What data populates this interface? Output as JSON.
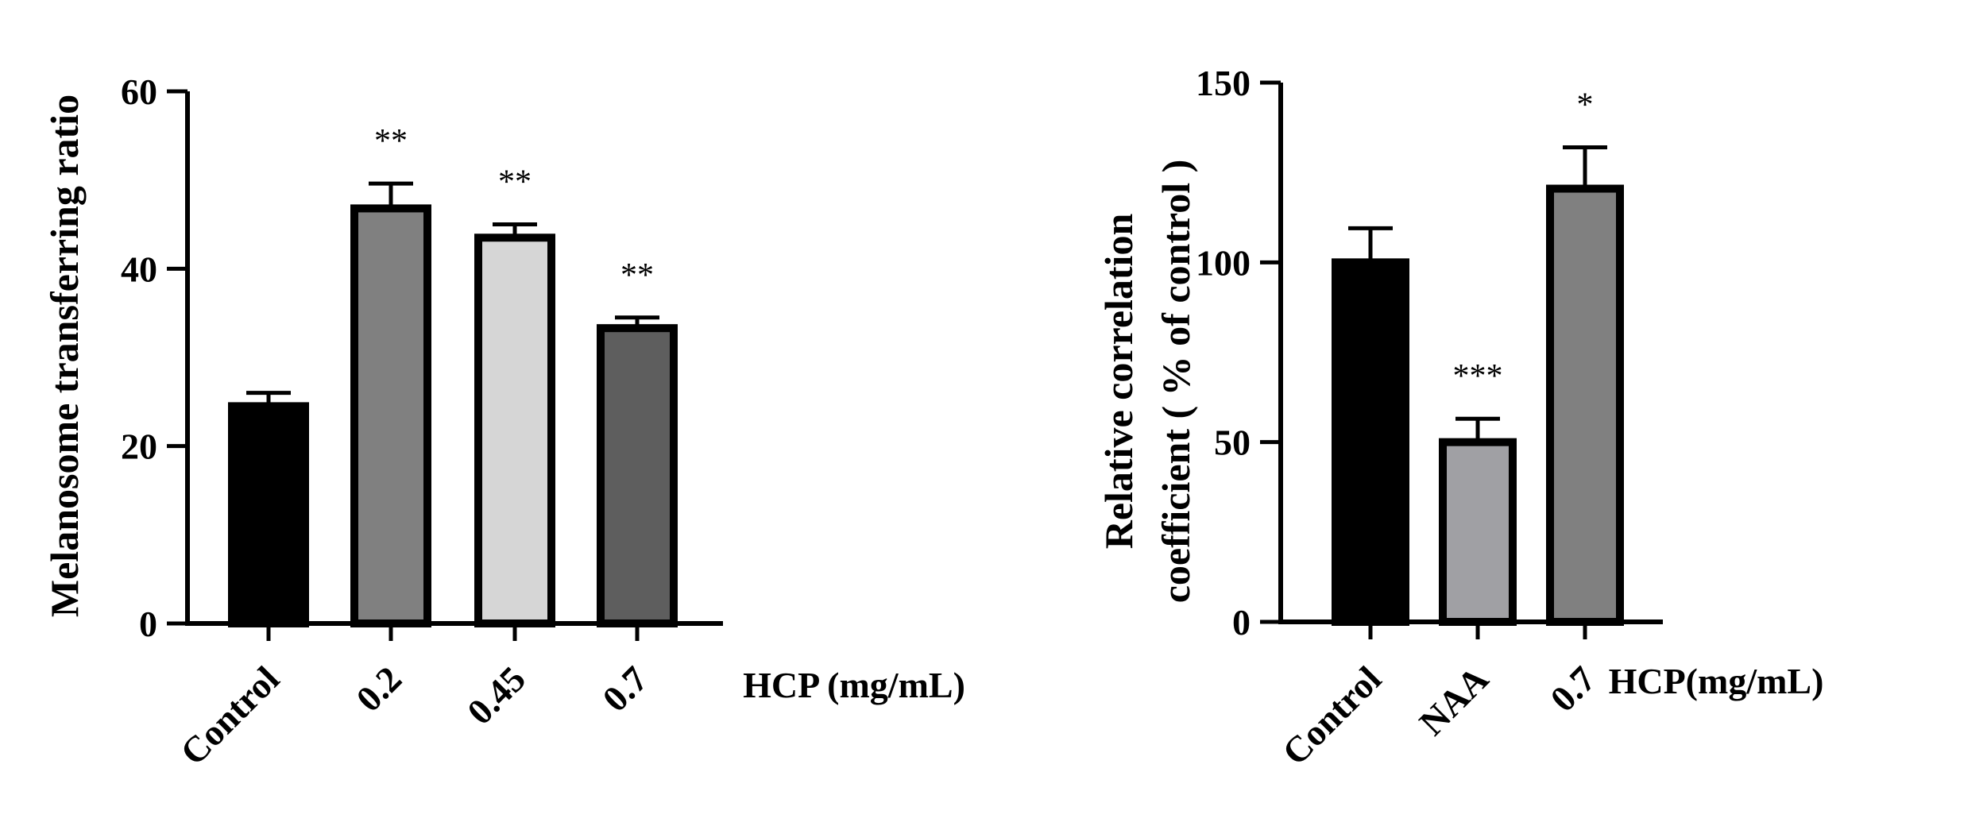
{
  "chart_data": [
    {
      "type": "bar",
      "ylabel": "Melanosome transferring ratio",
      "group_label": "HCP (mg/mL)",
      "categories": [
        "Control",
        "0.2",
        "0.45",
        "0.7"
      ],
      "values": [
        24.5,
        46.8,
        43.5,
        33.3
      ],
      "errors": [
        1.5,
        2.8,
        1.5,
        1.2
      ],
      "significance": [
        "",
        "**",
        "**",
        "**"
      ],
      "bar_colors": [
        "#000000",
        "#808080",
        "#d6d6d6",
        "#5e5e5e"
      ],
      "ylim": [
        0,
        60
      ],
      "yticks": [
        0,
        20,
        40,
        60
      ],
      "grid": false,
      "legend": "none"
    },
    {
      "type": "bar",
      "ylabel_lines": [
        "Relative correlation",
        "coefficient ( % of control )"
      ],
      "group_label": "HCP(mg/mL)",
      "categories": [
        "Control",
        "NAA",
        "0.7"
      ],
      "values": [
        100,
        50,
        120.5
      ],
      "errors": [
        9.5,
        6.5,
        11.5
      ],
      "significance": [
        "",
        "***",
        "*"
      ],
      "bar_colors": [
        "#000000",
        "#a0a0a4",
        "#808080"
      ],
      "ylim": [
        0,
        150
      ],
      "yticks": [
        0,
        50,
        100,
        150
      ],
      "grid": false,
      "legend": "none"
    }
  ]
}
